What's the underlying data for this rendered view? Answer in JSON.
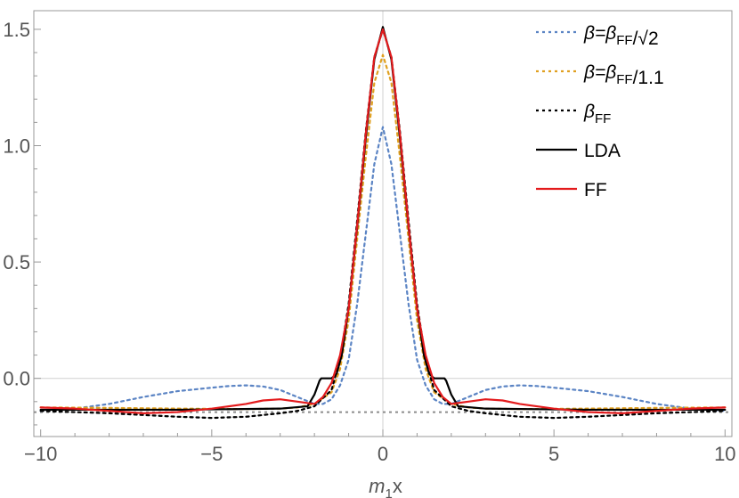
{
  "chart_data": {
    "type": "line",
    "title": "",
    "xlabel": "m₁x",
    "xlabel_main": "m",
    "xlabel_sub": "1",
    "xlabel_tail": "x",
    "ylabel": "",
    "xlim": [
      -10.2,
      10.2
    ],
    "ylim": [
      -0.25,
      1.58
    ],
    "xticks": [
      -10,
      -5,
      0,
      5,
      10
    ],
    "xtick_labels": [
      "−10",
      "−5",
      "0",
      "5",
      "10"
    ],
    "yticks": [
      0.0,
      0.5,
      1.0,
      1.5
    ],
    "ytick_labels": [
      "0.0",
      "0.5",
      "1.0",
      "1.5"
    ],
    "grid": "zero lines only",
    "reference_line_y": -0.145,
    "legend_position": "top-right",
    "series": [
      {
        "name": "β=βFF/√2",
        "label_html": "β=βFF/√2",
        "color": "#5b84c4",
        "dash": "dotted",
        "x": [
          -10,
          -9,
          -8,
          -7,
          -6,
          -5,
          -4.5,
          -4,
          -3.5,
          -3,
          -2.5,
          -2,
          -1.75,
          -1.5,
          -1.25,
          -1,
          -0.75,
          -0.5,
          -0.25,
          0,
          0.25,
          0.5,
          0.75,
          1,
          1.25,
          1.5,
          1.75,
          2,
          2.5,
          3,
          3.5,
          4,
          4.5,
          5,
          6,
          7,
          8,
          9,
          10
        ],
        "y": [
          -0.14,
          -0.13,
          -0.11,
          -0.08,
          -0.055,
          -0.04,
          -0.033,
          -0.03,
          -0.035,
          -0.05,
          -0.08,
          -0.11,
          -0.11,
          -0.09,
          -0.03,
          0.08,
          0.32,
          0.62,
          0.92,
          1.08,
          0.92,
          0.62,
          0.32,
          0.08,
          -0.03,
          -0.09,
          -0.11,
          -0.11,
          -0.08,
          -0.05,
          -0.035,
          -0.03,
          -0.033,
          -0.04,
          -0.055,
          -0.08,
          -0.11,
          -0.13,
          -0.14
        ]
      },
      {
        "name": "β=βFF/1.1",
        "color": "#e0a020",
        "dash": "dotted",
        "x": [
          -10,
          -8,
          -6,
          -4,
          -3,
          -2.5,
          -2,
          -1.5,
          -1.25,
          -1,
          -0.75,
          -0.5,
          -0.25,
          0,
          0.25,
          0.5,
          0.75,
          1,
          1.25,
          1.5,
          2,
          2.5,
          3,
          4,
          6,
          8,
          10
        ],
        "y": [
          -0.125,
          -0.127,
          -0.13,
          -0.132,
          -0.13,
          -0.125,
          -0.11,
          -0.06,
          0.04,
          0.25,
          0.6,
          0.95,
          1.27,
          1.39,
          1.27,
          0.95,
          0.6,
          0.25,
          0.04,
          -0.06,
          -0.11,
          -0.125,
          -0.13,
          -0.132,
          -0.13,
          -0.127,
          -0.125
        ]
      },
      {
        "name": "βFF",
        "color": "#000000",
        "dash": "dotted",
        "x": [
          -10,
          -8,
          -6,
          -5,
          -4,
          -3,
          -2.5,
          -2,
          -1.5,
          -1.25,
          -1,
          -0.75,
          -0.5,
          -0.25,
          0,
          0.25,
          0.5,
          0.75,
          1,
          1.25,
          1.5,
          2,
          2.5,
          3,
          4,
          5,
          6,
          8,
          10
        ],
        "y": [
          -0.14,
          -0.15,
          -0.165,
          -0.17,
          -0.165,
          -0.15,
          -0.14,
          -0.12,
          -0.05,
          0.08,
          0.32,
          0.68,
          1.06,
          1.38,
          1.5,
          1.38,
          1.06,
          0.68,
          0.32,
          0.08,
          -0.05,
          -0.12,
          -0.14,
          -0.15,
          -0.165,
          -0.17,
          -0.165,
          -0.15,
          -0.14
        ]
      },
      {
        "name": "LDA",
        "color": "#000000",
        "dash": "solid",
        "x": [
          -10,
          -6,
          -3,
          -2.2,
          -2,
          -1.85,
          -1.8,
          -1.55,
          -1.5,
          -1.35,
          -1.2,
          -1,
          -0.75,
          -0.5,
          -0.25,
          0,
          0.25,
          0.5,
          0.75,
          1,
          1.2,
          1.35,
          1.5,
          1.55,
          1.8,
          1.85,
          2,
          2.2,
          3,
          6,
          10
        ],
        "y": [
          -0.135,
          -0.135,
          -0.13,
          -0.12,
          -0.07,
          -0.01,
          0.0,
          0.0,
          0.0,
          0.02,
          0.1,
          0.3,
          0.65,
          1.03,
          1.37,
          1.51,
          1.37,
          1.03,
          0.65,
          0.3,
          0.1,
          0.02,
          0.0,
          0.0,
          0.0,
          -0.01,
          -0.07,
          -0.12,
          -0.13,
          -0.135,
          -0.135
        ]
      },
      {
        "name": "FF",
        "color": "#e31a1c",
        "dash": "solid",
        "x": [
          -10,
          -9,
          -8,
          -7,
          -6,
          -5,
          -4,
          -3.5,
          -3,
          -2.5,
          -2,
          -1.75,
          -1.5,
          -1.25,
          -1,
          -0.75,
          -0.5,
          -0.25,
          0,
          0.25,
          0.5,
          0.75,
          1,
          1.25,
          1.5,
          1.75,
          2,
          2.5,
          3,
          3.5,
          4,
          5,
          6,
          7,
          8,
          9,
          10
        ],
        "y": [
          -0.125,
          -0.13,
          -0.14,
          -0.15,
          -0.145,
          -0.13,
          -0.11,
          -0.095,
          -0.09,
          -0.1,
          -0.11,
          -0.08,
          -0.02,
          0.1,
          0.3,
          0.66,
          1.05,
          1.38,
          1.5,
          1.38,
          1.05,
          0.66,
          0.3,
          0.1,
          -0.02,
          -0.08,
          -0.11,
          -0.1,
          -0.09,
          -0.095,
          -0.11,
          -0.13,
          -0.145,
          -0.15,
          -0.14,
          -0.13,
          -0.125
        ]
      }
    ]
  }
}
